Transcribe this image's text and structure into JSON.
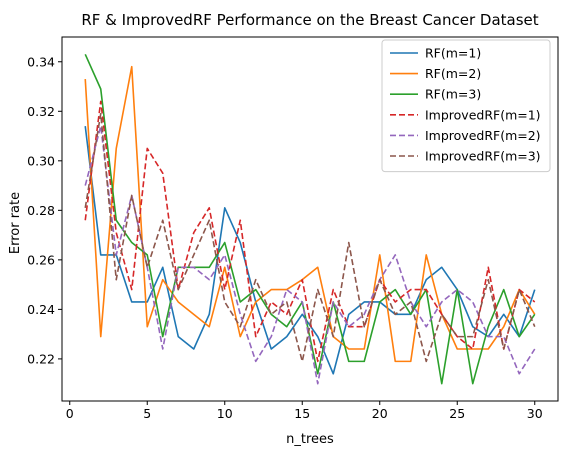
{
  "chart_data": {
    "type": "line",
    "title": "RF & ImprovedRF Performance on the Breast Cancer Dataset",
    "xlabel": "n_trees",
    "ylabel": "Error rate",
    "xlim": [
      -0.5,
      31.5
    ],
    "ylim": [
      0.203,
      0.35
    ],
    "xticks": [
      0,
      5,
      10,
      15,
      20,
      25,
      30
    ],
    "yticks": [
      0.22,
      0.24,
      0.26,
      0.28,
      0.3,
      0.32,
      0.34
    ],
    "ytick_labels": [
      "0.22",
      "0.24",
      "0.26",
      "0.28",
      "0.30",
      "0.32",
      "0.34"
    ],
    "grid": false,
    "legend_position": "top-right",
    "x": [
      1,
      2,
      3,
      4,
      5,
      6,
      7,
      8,
      9,
      10,
      11,
      12,
      13,
      14,
      15,
      16,
      17,
      18,
      19,
      20,
      21,
      22,
      23,
      24,
      25,
      26,
      27,
      28,
      29,
      30
    ],
    "series": [
      {
        "name": "RF(m=1)",
        "color": "#1f77b4",
        "dash": "solid",
        "values": [
          0.314,
          0.262,
          0.262,
          0.243,
          0.243,
          0.257,
          0.229,
          0.224,
          0.238,
          0.281,
          0.267,
          0.243,
          0.224,
          0.229,
          0.238,
          0.229,
          0.214,
          0.238,
          0.243,
          0.243,
          0.238,
          0.238,
          0.252,
          0.257,
          0.248,
          0.233,
          0.229,
          0.238,
          0.229,
          0.248
        ]
      },
      {
        "name": "RF(m=2)",
        "color": "#ff7f0e",
        "dash": "solid",
        "values": [
          0.333,
          0.229,
          0.305,
          0.338,
          0.233,
          0.252,
          0.243,
          0.238,
          0.233,
          0.257,
          0.229,
          0.243,
          0.248,
          0.248,
          0.252,
          0.257,
          0.229,
          0.224,
          0.224,
          0.262,
          0.219,
          0.219,
          0.262,
          0.238,
          0.224,
          0.224,
          0.224,
          0.233,
          0.248,
          0.238
        ]
      },
      {
        "name": "RF(m=3)",
        "color": "#2ca02c",
        "dash": "solid",
        "values": [
          0.343,
          0.329,
          0.276,
          0.267,
          0.262,
          0.229,
          0.257,
          0.257,
          0.257,
          0.267,
          0.243,
          0.248,
          0.238,
          0.233,
          0.243,
          0.214,
          0.243,
          0.219,
          0.219,
          0.243,
          0.248,
          0.238,
          0.248,
          0.21,
          0.248,
          0.21,
          0.233,
          0.248,
          0.229,
          0.238
        ]
      },
      {
        "name": "ImprovedRF(m=1)",
        "color": "#d62728",
        "dash": "dashed",
        "values": [
          0.276,
          0.324,
          0.271,
          0.248,
          0.305,
          0.295,
          0.248,
          0.271,
          0.281,
          0.248,
          0.276,
          0.229,
          0.243,
          0.238,
          0.252,
          0.219,
          0.248,
          0.233,
          0.233,
          0.252,
          0.243,
          0.248,
          0.248,
          0.238,
          0.229,
          0.224,
          0.257,
          0.224,
          0.248,
          0.243
        ]
      },
      {
        "name": "ImprovedRF(m=2)",
        "color": "#9467bd",
        "dash": "dashed",
        "values": [
          0.29,
          0.314,
          0.262,
          0.286,
          0.257,
          0.224,
          0.257,
          0.257,
          0.252,
          0.262,
          0.238,
          0.219,
          0.229,
          0.248,
          0.243,
          0.21,
          0.243,
          0.233,
          0.238,
          0.252,
          0.262,
          0.243,
          0.233,
          0.243,
          0.248,
          0.243,
          0.229,
          0.229,
          0.214,
          0.224
        ]
      },
      {
        "name": "ImprovedRF(m=3)",
        "color": "#8c564b",
        "dash": "dashed",
        "values": [
          0.281,
          0.319,
          0.252,
          0.286,
          0.257,
          0.276,
          0.248,
          0.262,
          0.276,
          0.243,
          0.233,
          0.252,
          0.238,
          0.243,
          0.219,
          0.248,
          0.229,
          0.267,
          0.233,
          0.252,
          0.238,
          0.243,
          0.219,
          0.238,
          0.229,
          0.229,
          0.252,
          0.224,
          0.248,
          0.233
        ]
      }
    ]
  }
}
